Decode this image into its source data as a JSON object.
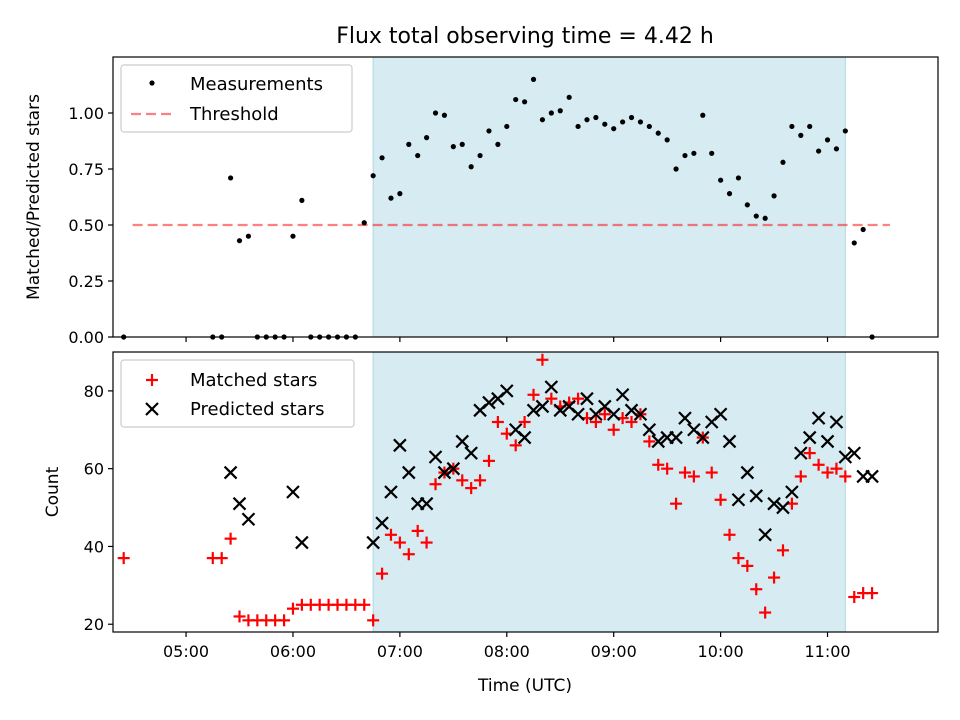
{
  "colors": {
    "span": "#add8e6",
    "measurement": "#000000",
    "threshold": "#ff0000",
    "matched": "#ff0000",
    "predicted": "#000000"
  },
  "chart_data": [
    {
      "type": "scatter",
      "title": "Flux total observing time = 4.42 h",
      "xlabel": "",
      "ylabel": "Matched/Predicted stars",
      "xlim": [
        "04:19",
        "12:02"
      ],
      "ylim": [
        0,
        1.25
      ],
      "x_ticks": [
        "05:00",
        "06:00",
        "07:00",
        "08:00",
        "09:00",
        "10:00",
        "11:00"
      ],
      "y_ticks": [
        "0.00",
        "0.25",
        "0.50",
        "0.75",
        "1.00"
      ],
      "highlight_span": [
        "06:45",
        "11:10"
      ],
      "legend_position": "upper left",
      "threshold": {
        "name": "Threshold",
        "value": 0.5,
        "x_range": [
          "04:30",
          "11:35"
        ],
        "style": "dashed"
      },
      "series": [
        {
          "name": "Measurements",
          "marker": "dot",
          "x": [
            "04:25",
            "05:15",
            "05:20",
            "05:25",
            "05:30",
            "05:35",
            "05:40",
            "05:45",
            "05:50",
            "05:55",
            "06:00",
            "06:05",
            "06:10",
            "06:15",
            "06:20",
            "06:25",
            "06:30",
            "06:35",
            "06:40",
            "06:45",
            "06:50",
            "06:55",
            "07:00",
            "07:05",
            "07:10",
            "07:15",
            "07:20",
            "07:25",
            "07:30",
            "07:35",
            "07:40",
            "07:45",
            "07:50",
            "07:55",
            "08:00",
            "08:05",
            "08:10",
            "08:15",
            "08:20",
            "08:25",
            "08:30",
            "08:35",
            "08:40",
            "08:45",
            "08:50",
            "08:55",
            "09:00",
            "09:05",
            "09:10",
            "09:15",
            "09:20",
            "09:25",
            "09:30",
            "09:35",
            "09:40",
            "09:45",
            "09:50",
            "09:55",
            "10:00",
            "10:05",
            "10:10",
            "10:15",
            "10:20",
            "10:25",
            "10:30",
            "10:35",
            "10:40",
            "10:45",
            "10:50",
            "10:55",
            "11:00",
            "11:05",
            "11:10",
            "11:15",
            "11:20",
            "11:25"
          ],
          "y": [
            0,
            0,
            0,
            0.71,
            0.43,
            0.45,
            0,
            0,
            0,
            0,
            0.45,
            0.61,
            0,
            0,
            0,
            0,
            0,
            0,
            0.51,
            0.72,
            0.8,
            0.62,
            0.64,
            0.86,
            0.81,
            0.89,
            1.0,
            0.99,
            0.85,
            0.86,
            0.76,
            0.81,
            0.92,
            0.86,
            0.94,
            1.06,
            1.05,
            1.15,
            0.97,
            1.0,
            1.01,
            1.07,
            0.94,
            0.97,
            0.98,
            0.95,
            0.93,
            0.96,
            0.98,
            0.96,
            0.94,
            0.91,
            0.88,
            0.75,
            0.81,
            0.82,
            0.99,
            0.82,
            0.7,
            0.64,
            0.71,
            0.59,
            0.54,
            0.53,
            0.63,
            0.78,
            0.94,
            0.9,
            0.94,
            0.83,
            0.88,
            0.84,
            0.92,
            0.42,
            0.48,
            0
          ]
        }
      ]
    },
    {
      "type": "scatter",
      "title": "",
      "xlabel": "Time (UTC)",
      "ylabel": "Count",
      "xlim": [
        "04:19",
        "12:02"
      ],
      "ylim": [
        18,
        90
      ],
      "x_ticks": [
        "05:00",
        "06:00",
        "07:00",
        "08:00",
        "09:00",
        "10:00",
        "11:00"
      ],
      "y_ticks": [
        "20",
        "40",
        "60",
        "80"
      ],
      "highlight_span": [
        "06:45",
        "11:10"
      ],
      "legend_position": "upper left",
      "series": [
        {
          "name": "Matched stars",
          "marker": "plus",
          "x": [
            "04:25",
            "05:15",
            "05:20",
            "05:25",
            "05:30",
            "05:35",
            "05:40",
            "05:45",
            "05:50",
            "05:55",
            "06:00",
            "06:05",
            "06:10",
            "06:15",
            "06:20",
            "06:25",
            "06:30",
            "06:35",
            "06:40",
            "06:45",
            "06:50",
            "06:55",
            "07:00",
            "07:05",
            "07:10",
            "07:15",
            "07:20",
            "07:25",
            "07:30",
            "07:35",
            "07:40",
            "07:45",
            "07:50",
            "07:55",
            "08:00",
            "08:05",
            "08:10",
            "08:15",
            "08:20",
            "08:25",
            "08:30",
            "08:35",
            "08:40",
            "08:45",
            "08:50",
            "08:55",
            "09:00",
            "09:05",
            "09:10",
            "09:15",
            "09:20",
            "09:25",
            "09:30",
            "09:35",
            "09:40",
            "09:45",
            "09:50",
            "09:55",
            "10:00",
            "10:05",
            "10:10",
            "10:15",
            "10:20",
            "10:25",
            "10:30",
            "10:35",
            "10:40",
            "10:45",
            "10:50",
            "10:55",
            "11:00",
            "11:05",
            "11:10",
            "11:15",
            "11:20",
            "11:25"
          ],
          "y": [
            37,
            37,
            37,
            42,
            22,
            21,
            21,
            21,
            21,
            21,
            24,
            25,
            25,
            25,
            25,
            25,
            25,
            25,
            25,
            21,
            33,
            43,
            41,
            38,
            44,
            41,
            56,
            59,
            60,
            57,
            55,
            57,
            62,
            72,
            69,
            66,
            72,
            79,
            88,
            78,
            76,
            77,
            78,
            73,
            72,
            74,
            70,
            73,
            72,
            74,
            67,
            61,
            60,
            51,
            59,
            58,
            68,
            59,
            52,
            43,
            37,
            35,
            29,
            23,
            32,
            39,
            51,
            58,
            64,
            61,
            59,
            60,
            58,
            27,
            28,
            28
          ]
        },
        {
          "name": "Predicted stars",
          "marker": "x",
          "x": [
            "05:25",
            "05:30",
            "05:35",
            "06:00",
            "06:05",
            "06:45",
            "06:50",
            "06:55",
            "07:00",
            "07:05",
            "07:10",
            "07:15",
            "07:20",
            "07:25",
            "07:30",
            "07:35",
            "07:40",
            "07:45",
            "07:50",
            "07:55",
            "08:00",
            "08:05",
            "08:10",
            "08:15",
            "08:20",
            "08:25",
            "08:30",
            "08:35",
            "08:40",
            "08:45",
            "08:50",
            "08:55",
            "09:00",
            "09:05",
            "09:10",
            "09:15",
            "09:20",
            "09:25",
            "09:30",
            "09:35",
            "09:40",
            "09:45",
            "09:50",
            "09:55",
            "10:00",
            "10:05",
            "10:10",
            "10:15",
            "10:20",
            "10:25",
            "10:30",
            "10:35",
            "10:40",
            "10:45",
            "10:50",
            "10:55",
            "11:00",
            "11:05",
            "11:10",
            "11:15",
            "11:20",
            "11:25"
          ],
          "y": [
            59,
            51,
            47,
            54,
            41,
            41,
            46,
            54,
            66,
            59,
            51,
            51,
            63,
            59,
            60,
            67,
            64,
            75,
            77,
            78,
            80,
            70,
            68,
            75,
            76,
            81,
            75,
            76,
            74,
            78,
            74,
            76,
            74,
            79,
            75,
            74,
            70,
            67,
            68,
            68,
            73,
            70,
            68,
            72,
            74,
            67,
            52,
            59,
            53,
            43,
            51,
            50,
            54,
            64,
            68,
            73,
            67,
            72,
            63,
            64,
            58,
            58
          ]
        }
      ]
    }
  ]
}
